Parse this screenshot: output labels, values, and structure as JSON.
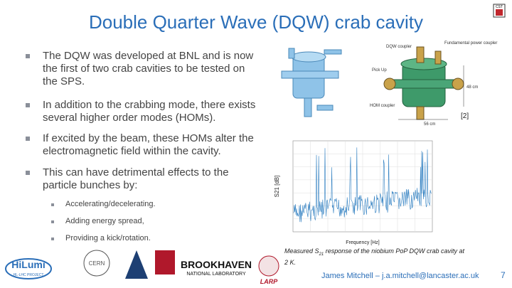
{
  "header": {
    "title": "Double Quarter Wave (DQW) crab cavity",
    "logo_corner": "CST"
  },
  "bullets": [
    "The DQW was developed at BNL and is now the first of two crab cavities to be tested on the SPS.",
    "In addition to the crabbing mode, there exists several higher order modes (HOMs).",
    "If excited by the beam, these HOMs alter the electromagnetic field within the cavity.",
    "This can have detrimental effects to the particle bunches by:"
  ],
  "sub_bullets": [
    "Accelerating/decelerating.",
    "Adding energy spread,",
    "Providing a kick/rotation."
  ],
  "figure": {
    "cavity_labels": [
      "DQW coupler",
      "Fundamental power coupler",
      "Pick Up",
      "HOM coupler",
      "48 cm",
      "56 cm"
    ],
    "reference": "[2]",
    "plot_ylabel": "S21 [dB]",
    "plot_xlabel": "Frequency [Hz]",
    "caption": [
      "Measured",
      "S",
      "21",
      "response of the niobium PoP DQW crab cavity at 2 K."
    ]
  },
  "footer": {
    "author": "James Mitchell – j.a.mitchell@lancaster.ac.uk",
    "page": "7",
    "logos": [
      "HiLumi",
      "HL-LHC PROJECT",
      "CERN",
      "BROOKHAVEN",
      "NATIONAL LABORATORY",
      "LARP"
    ]
  }
}
